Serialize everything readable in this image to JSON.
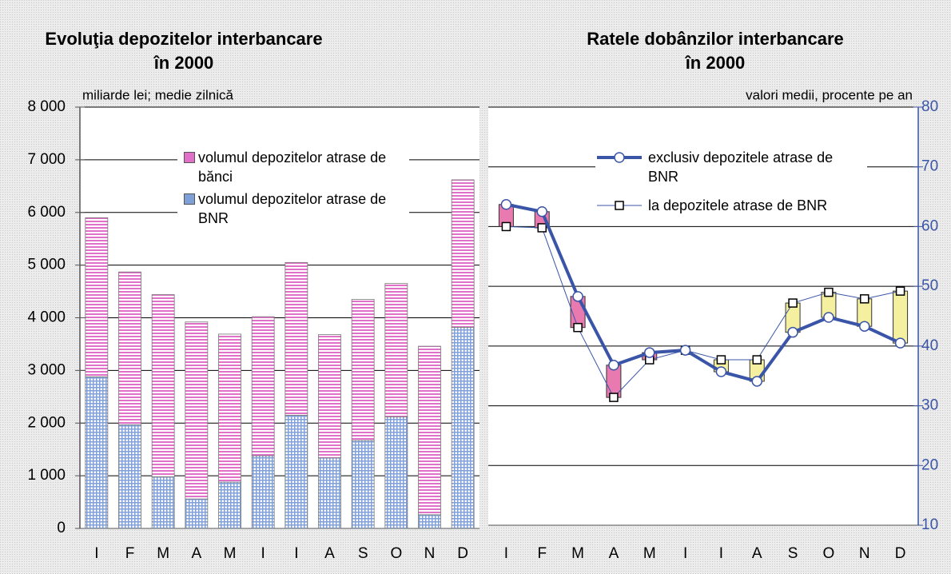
{
  "chart_data": [
    {
      "type": "bar",
      "stacked": true,
      "title": [
        "Evoluţia depozitelor interbancare",
        "în 2000"
      ],
      "subtitle": "miliarde lei; medie zilnică",
      "categories": [
        "I",
        "F",
        "M",
        "A",
        "M",
        "I",
        "I",
        "A",
        "S",
        "O",
        "N",
        "D"
      ],
      "series": [
        {
          "name": "volumul depozitelor atrase de BNR",
          "color": "#7f9fd8",
          "values": [
            2880,
            1970,
            980,
            560,
            880,
            1380,
            2150,
            1340,
            1670,
            2120,
            260,
            3820
          ]
        },
        {
          "name": "volumul depozitelor atrase de bănci",
          "color": "#e070c8",
          "values": [
            3020,
            2900,
            3460,
            3360,
            2810,
            2640,
            2900,
            2340,
            2680,
            2530,
            3200,
            2800
          ]
        }
      ],
      "legend_order": [
        1,
        0
      ],
      "ylim": [
        0,
        8000
      ],
      "yticks": [
        0,
        {
          "value": 1000,
          "label": "1 000"
        },
        {
          "value": 2000,
          "label": "2 000"
        },
        {
          "value": 3000,
          "label": "3 000"
        },
        {
          "value": 4000,
          "label": "4 000"
        },
        {
          "value": 5000,
          "label": "5 000"
        },
        {
          "value": 6000,
          "label": "6 000"
        },
        {
          "value": 7000,
          "label": "7 000"
        },
        {
          "value": 8000,
          "label": "8 000"
        }
      ],
      "grid": true
    },
    {
      "type": "line",
      "title": [
        "Ratele dobânzilor interbancare",
        "în 2000"
      ],
      "subtitle": "valori medii, procente pe an",
      "categories": [
        "I",
        "F",
        "M",
        "A",
        "M",
        "I",
        "I",
        "A",
        "S",
        "O",
        "N",
        "D"
      ],
      "series": [
        {
          "name": "exclusiv depozitele atrase de BNR",
          "color": "#3a55a8",
          "marker": "circle",
          "values": [
            63.7,
            62.5,
            48.3,
            36.8,
            38.9,
            39.3,
            35.7,
            34.1,
            42.3,
            44.8,
            43.3,
            40.5
          ]
        },
        {
          "name": "la depozitele atrase de BNR",
          "color": "#3a55a8",
          "marker": "square",
          "values": [
            60.0,
            59.8,
            43.1,
            31.4,
            37.7,
            39.3,
            37.7,
            37.7,
            47.2,
            49.0,
            47.9,
            49.2
          ]
        }
      ],
      "up_color": "#e87ab0",
      "down_color": "#f4f0a0",
      "y_axis_side": "right",
      "ylim": [
        10,
        80
      ],
      "yticks": [
        10,
        20,
        30,
        40,
        50,
        60,
        70,
        80
      ],
      "grid": true
    }
  ]
}
